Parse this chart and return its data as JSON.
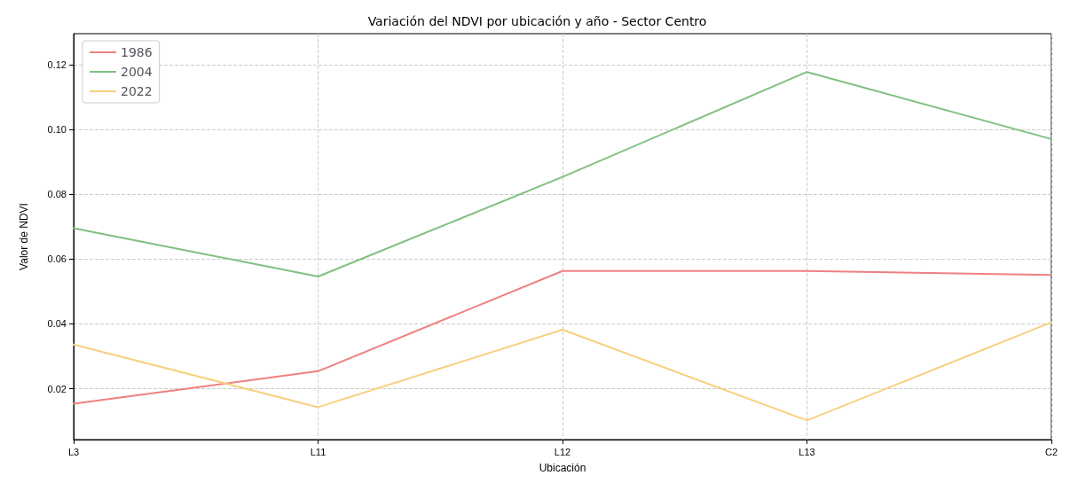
{
  "chart_data": {
    "type": "line",
    "title": "Variación del NDVI por ubicación y año - Sector Centro",
    "xlabel": "Ubicación",
    "ylabel": "Valor de NDVI",
    "categories": [
      "L3",
      "L11",
      "L12",
      "L13",
      "C2"
    ],
    "series": [
      {
        "name": "1986",
        "color": "#ee8080",
        "values": [
          0.0154,
          0.0254,
          0.0563,
          0.0563,
          0.0551
        ]
      },
      {
        "name": "2004",
        "color": "#80c080",
        "values": [
          0.0695,
          0.0546,
          0.0853,
          0.1177,
          0.097
        ]
      },
      {
        "name": "2022",
        "color": "#f8d080",
        "values": [
          0.0336,
          0.0143,
          0.0382,
          0.0102,
          0.0405
        ]
      }
    ],
    "ylim": [
      0.0043,
      0.1295
    ],
    "yticks": [
      0.02,
      0.04,
      0.06,
      0.08,
      {
        "value": 0.1,
        "label": "0.10"
      },
      0.12
    ],
    "grid": true,
    "legend": "top left",
    "marker": "none",
    "line_style": "solid"
  }
}
